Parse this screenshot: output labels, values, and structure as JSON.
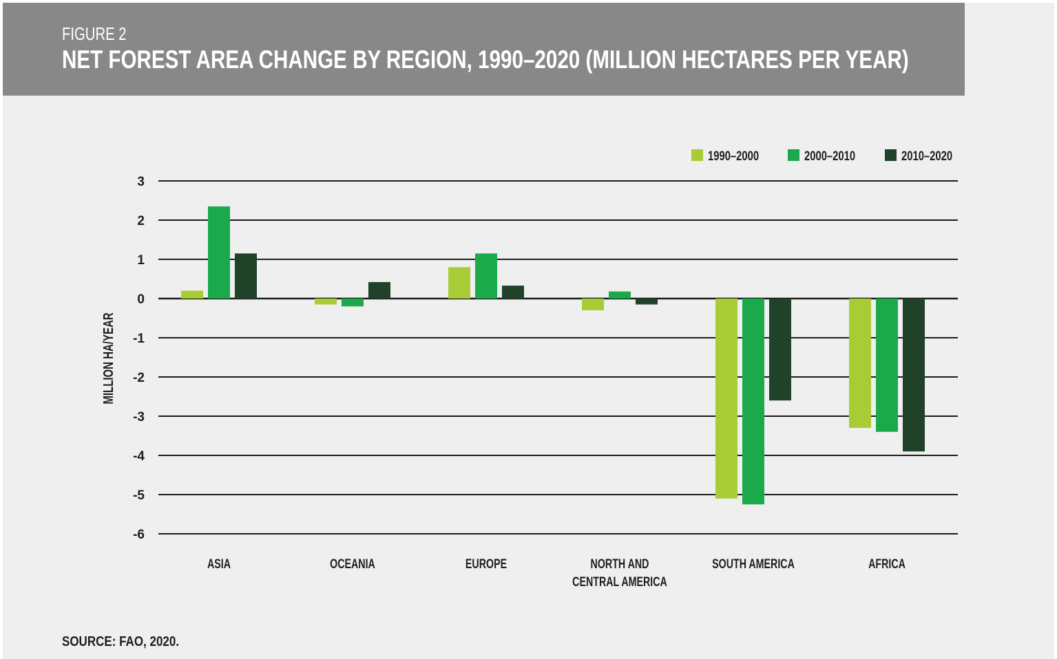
{
  "header": {
    "figure_label": "FIGURE 2",
    "title": "NET FOREST AREA CHANGE BY REGION, 1990–2020 (MILLION HECTARES PER YEAR)"
  },
  "source": "SOURCE: FAO, 2020.",
  "colors": {
    "header_background": "#888888",
    "panel_background": "#efefef",
    "series": [
      "#a8cc35",
      "#1aaa4b",
      "#1f4229"
    ]
  },
  "chart_data": {
    "type": "bar",
    "ylabel": "MILLION HA/YEAR",
    "ylim": [
      -6,
      3
    ],
    "yticks": [
      3,
      2,
      1,
      0,
      -1,
      -2,
      -3,
      -4,
      -5,
      -6
    ],
    "tick_labels": [
      "3",
      "2",
      "1",
      "0",
      "-1",
      "-2",
      "-3",
      "-4",
      "-5",
      "-6"
    ],
    "grid": true,
    "legend_position": "top-right",
    "categories": [
      [
        "ASIA"
      ],
      [
        "OCEANIA"
      ],
      [
        "EUROPE"
      ],
      [
        "NORTH AND",
        "CENTRAL AMERICA"
      ],
      [
        "SOUTH AMERICA"
      ],
      [
        "AFRICA"
      ]
    ],
    "series": [
      {
        "name": "1990–2000",
        "color": "#a8cc35",
        "values": [
          0.2,
          -0.15,
          0.8,
          -0.3,
          -5.1,
          -3.3
        ]
      },
      {
        "name": "2000–2010",
        "color": "#1aaa4b",
        "values": [
          2.35,
          -0.2,
          1.15,
          0.18,
          -5.25,
          -3.4
        ]
      },
      {
        "name": "2010–2020",
        "color": "#1f4229",
        "values": [
          1.15,
          0.42,
          0.33,
          -0.15,
          -2.6,
          -3.9
        ]
      }
    ]
  }
}
